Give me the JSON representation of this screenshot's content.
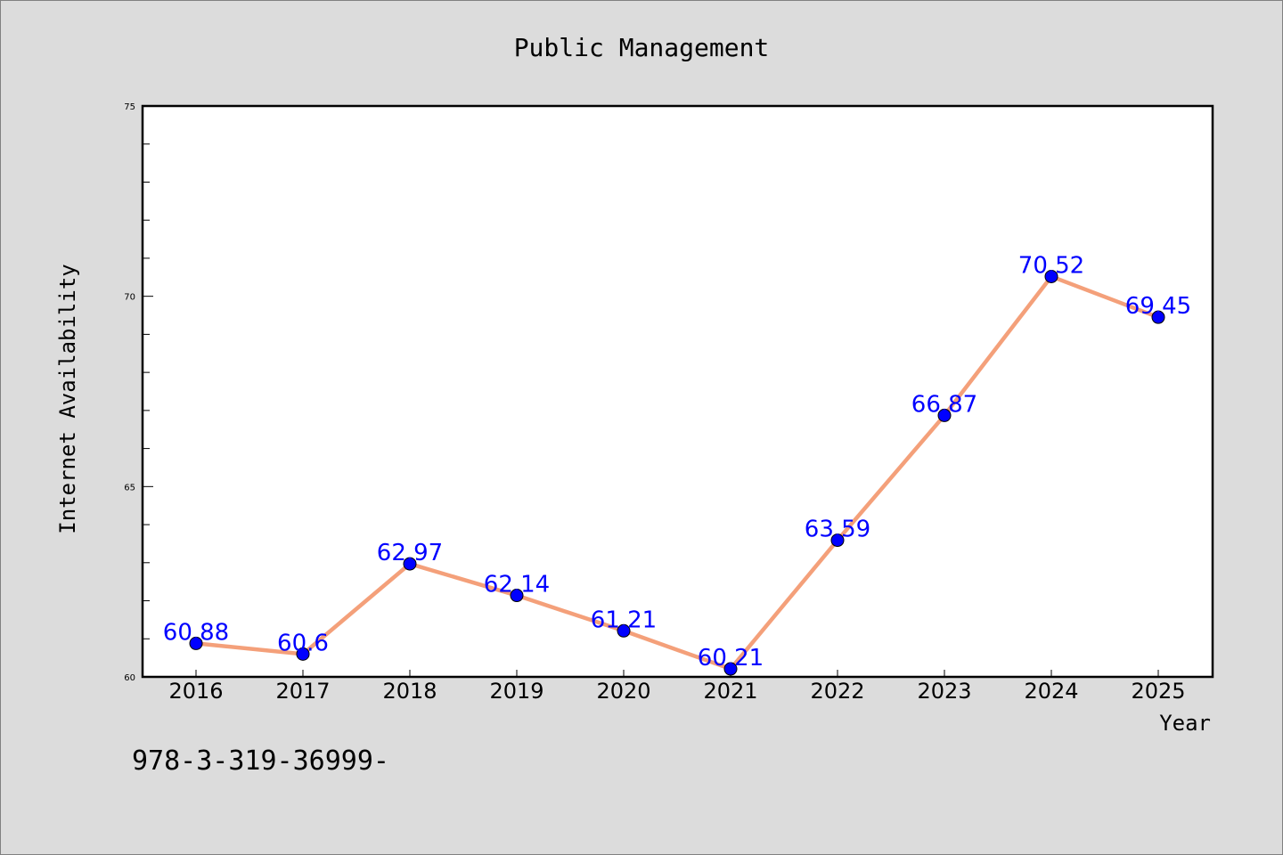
{
  "chart_data": {
    "type": "line",
    "title": "Public Management",
    "xlabel": "Year",
    "ylabel": "Internet Availability",
    "categories": [
      "2016",
      "2017",
      "2018",
      "2019",
      "2020",
      "2021",
      "2022",
      "2023",
      "2024",
      "2025"
    ],
    "series": [
      {
        "values": [
          60.88,
          60.6,
          62.97,
          62.14,
          61.21,
          60.21,
          63.59,
          66.87,
          70.52,
          69.45
        ],
        "labels": [
          "60.88",
          "60.6",
          "62.97",
          "62.14",
          "61.21",
          "60.21",
          "63.59",
          "66.87",
          "70.52",
          "69.45"
        ]
      }
    ],
    "ylim": [
      60,
      75
    ],
    "yticks": [
      "60",
      "65",
      "70",
      "75"
    ],
    "grid": false,
    "legend": "none",
    "colors": {
      "line": "#f4a07a",
      "marker": "#0000ff",
      "data_label": "#0000ff",
      "background": "#dcdcdc",
      "plot_area": "#ffffff"
    }
  },
  "footer_text": "978-3-319-36999-"
}
